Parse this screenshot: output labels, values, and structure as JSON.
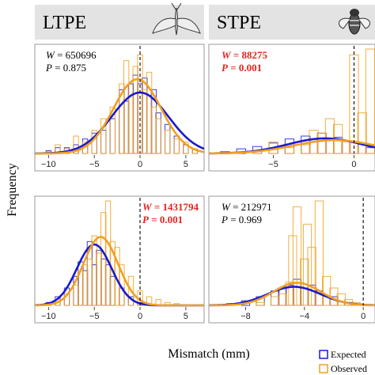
{
  "columns": [
    "LTPE",
    "STPE"
  ],
  "ylabel": "Frequency",
  "xlabel": "Mismatch (mm)",
  "legend": [
    {
      "label": "Expected",
      "color": "#1a1acc"
    },
    {
      "label": "Observed",
      "color": "#f0a020"
    }
  ],
  "chart_data": [
    {
      "type": "bar",
      "panel": "LTPE-top",
      "title": "LTPE",
      "xlim": [
        -11.5,
        7
      ],
      "xticks": [
        -10,
        -5,
        0,
        5
      ],
      "stat_w_label": "W",
      "stat_w_value": "650696",
      "stat_p_label": "P",
      "stat_p_value": "0.875",
      "significant": false,
      "vline": 0,
      "series": [
        {
          "name": "Expected",
          "color": "#1a1acc",
          "type": "hist",
          "x": [
            -10,
            -9,
            -8,
            -7,
            -6,
            -5,
            -4,
            -3,
            -2,
            -1.5,
            -1,
            -0.5,
            0,
            0.5,
            1,
            1.5,
            2,
            3,
            4,
            5,
            6
          ],
          "values": [
            0.5,
            1,
            1,
            1.5,
            2.5,
            3.5,
            4,
            6,
            11,
            9,
            12,
            13.5,
            12,
            13,
            10,
            11,
            7,
            5,
            3,
            1.5,
            0.7
          ]
        },
        {
          "name": "Observed",
          "color": "#f0a020",
          "type": "hist",
          "x": [
            -10,
            -9,
            -8,
            -7,
            -6,
            -5,
            -4,
            -3,
            -2,
            -1.5,
            -1,
            -0.5,
            0,
            0.5,
            1,
            1.5,
            2,
            3,
            4,
            5,
            6
          ],
          "values": [
            0.3,
            1.5,
            0.8,
            3,
            2,
            4,
            6,
            8,
            12,
            16,
            10,
            15,
            17,
            11,
            14,
            8,
            6,
            4,
            2.5,
            2,
            0.8
          ]
        },
        {
          "name": "Expected",
          "color": "#1a1acc",
          "type": "density",
          "mean": 0,
          "sd": 3.1,
          "peak": 10.5
        },
        {
          "name": "Observed",
          "color": "#f0a020",
          "type": "density",
          "mean": -0.3,
          "sd": 2.6,
          "peak": 12.8
        }
      ],
      "ylim": [
        0,
        18
      ]
    },
    {
      "type": "bar",
      "panel": "STPE-top",
      "title": "STPE",
      "xlim": [
        -9,
        1.3
      ],
      "xticks": [
        -5,
        0
      ],
      "stat_w_label": "W",
      "stat_w_value": "88275",
      "stat_p_label": "P",
      "stat_p_value": "0.001",
      "significant": true,
      "vline": 0,
      "series": [
        {
          "name": "Expected",
          "color": "#1a1acc",
          "type": "hist",
          "x": [
            -8,
            -7,
            -6,
            -5,
            -4,
            -3,
            -2,
            -1,
            0,
            1
          ],
          "values": [
            0.3,
            0.8,
            1.2,
            1.8,
            2.5,
            3,
            3.5,
            2.8,
            2,
            1
          ]
        },
        {
          "name": "Observed",
          "color": "#f0a020",
          "type": "hist",
          "x": [
            -6,
            -5,
            -4,
            -3,
            -2.5,
            -2,
            -1.5,
            -1,
            -0.5,
            0,
            0.5,
            1
          ],
          "values": [
            0.5,
            2,
            1,
            1.5,
            4,
            3.5,
            6,
            5,
            2,
            17,
            7,
            18
          ]
        },
        {
          "name": "Expected",
          "color": "#1a1acc",
          "type": "density",
          "mean": -1.8,
          "sd": 2.3,
          "peak": 2.6
        },
        {
          "name": "Observed",
          "color": "#f0a020",
          "type": "density",
          "mean": -1.2,
          "sd": 2.5,
          "peak": 2.3
        }
      ],
      "ylim": [
        0,
        18
      ]
    },
    {
      "type": "bar",
      "panel": "LTPE-bottom",
      "title": "",
      "xlim": [
        -11.5,
        7
      ],
      "xticks": [
        -10,
        -5,
        0,
        5
      ],
      "stat_w_label": "W",
      "stat_w_value": "1431794",
      "stat_p_label": "P",
      "stat_p_value": "0.001",
      "significant": true,
      "vline": 0,
      "series": [
        {
          "name": "Expected",
          "color": "#1a1acc",
          "type": "hist",
          "x": [
            -10,
            -9,
            -8,
            -7,
            -6.5,
            -6,
            -5.5,
            -5,
            -4.5,
            -4,
            -3.5,
            -3,
            -2,
            -1,
            0
          ],
          "values": [
            0.5,
            1.5,
            3,
            5,
            7.5,
            6,
            11,
            7,
            9.5,
            8,
            7,
            5,
            3,
            1.5,
            0.5
          ]
        },
        {
          "name": "Observed",
          "color": "#f0a020",
          "type": "hist",
          "x": [
            -10,
            -9,
            -8,
            -7,
            -6.5,
            -6,
            -5.5,
            -5,
            -4.5,
            -4,
            -3.5,
            -3,
            -2.5,
            -2,
            -1,
            0,
            1,
            2,
            3,
            4
          ],
          "values": [
            0.3,
            1,
            2,
            3.5,
            6,
            7,
            8,
            12,
            9,
            16,
            18,
            11,
            10,
            7,
            5,
            2.5,
            1.5,
            1,
            0.5,
            0.3
          ]
        },
        {
          "name": "Expected",
          "color": "#1a1acc",
          "type": "density",
          "mean": -5,
          "sd": 1.9,
          "peak": 10.5
        },
        {
          "name": "Observed",
          "color": "#f0a020",
          "type": "density",
          "mean": -4.3,
          "sd": 1.9,
          "peak": 11.8
        }
      ],
      "ylim": [
        0,
        18
      ]
    },
    {
      "type": "bar",
      "panel": "STPE-bottom",
      "title": "",
      "xlim": [
        -10.5,
        0.8
      ],
      "xticks": [
        -8,
        -4,
        0
      ],
      "stat_w_label": "W",
      "stat_w_value": "212971",
      "stat_p_label": "P",
      "stat_p_value": "0.969",
      "significant": false,
      "vline": 0,
      "series": [
        {
          "name": "Expected",
          "color": "#1a1acc",
          "type": "hist",
          "x": [
            -9,
            -8,
            -7,
            -6,
            -5.5,
            -5,
            -4.5,
            -4,
            -3.5,
            -3,
            -2,
            -1
          ],
          "values": [
            0.3,
            0.8,
            1.5,
            2.5,
            3,
            3.5,
            4.5,
            3,
            3.5,
            2.5,
            1.5,
            0.5
          ]
        },
        {
          "name": "Observed",
          "color": "#f0a020",
          "type": "hist",
          "x": [
            -7,
            -6,
            -5.5,
            -5,
            -4.8,
            -4.5,
            -4,
            -3.8,
            -3.5,
            -3,
            -2.5,
            -2,
            -1.5,
            -1,
            -0.5
          ],
          "values": [
            0.5,
            1.5,
            2,
            4,
            12,
            17,
            8,
            14,
            10,
            18,
            5,
            3,
            2,
            1,
            0.5
          ]
        },
        {
          "name": "Expected",
          "color": "#1a1acc",
          "type": "density",
          "mean": -4.7,
          "sd": 1.8,
          "peak": 3.2
        },
        {
          "name": "Observed",
          "color": "#f0a020",
          "type": "density",
          "mean": -4.5,
          "sd": 1.6,
          "peak": 3.9
        }
      ],
      "ylim": [
        0,
        18
      ]
    }
  ]
}
